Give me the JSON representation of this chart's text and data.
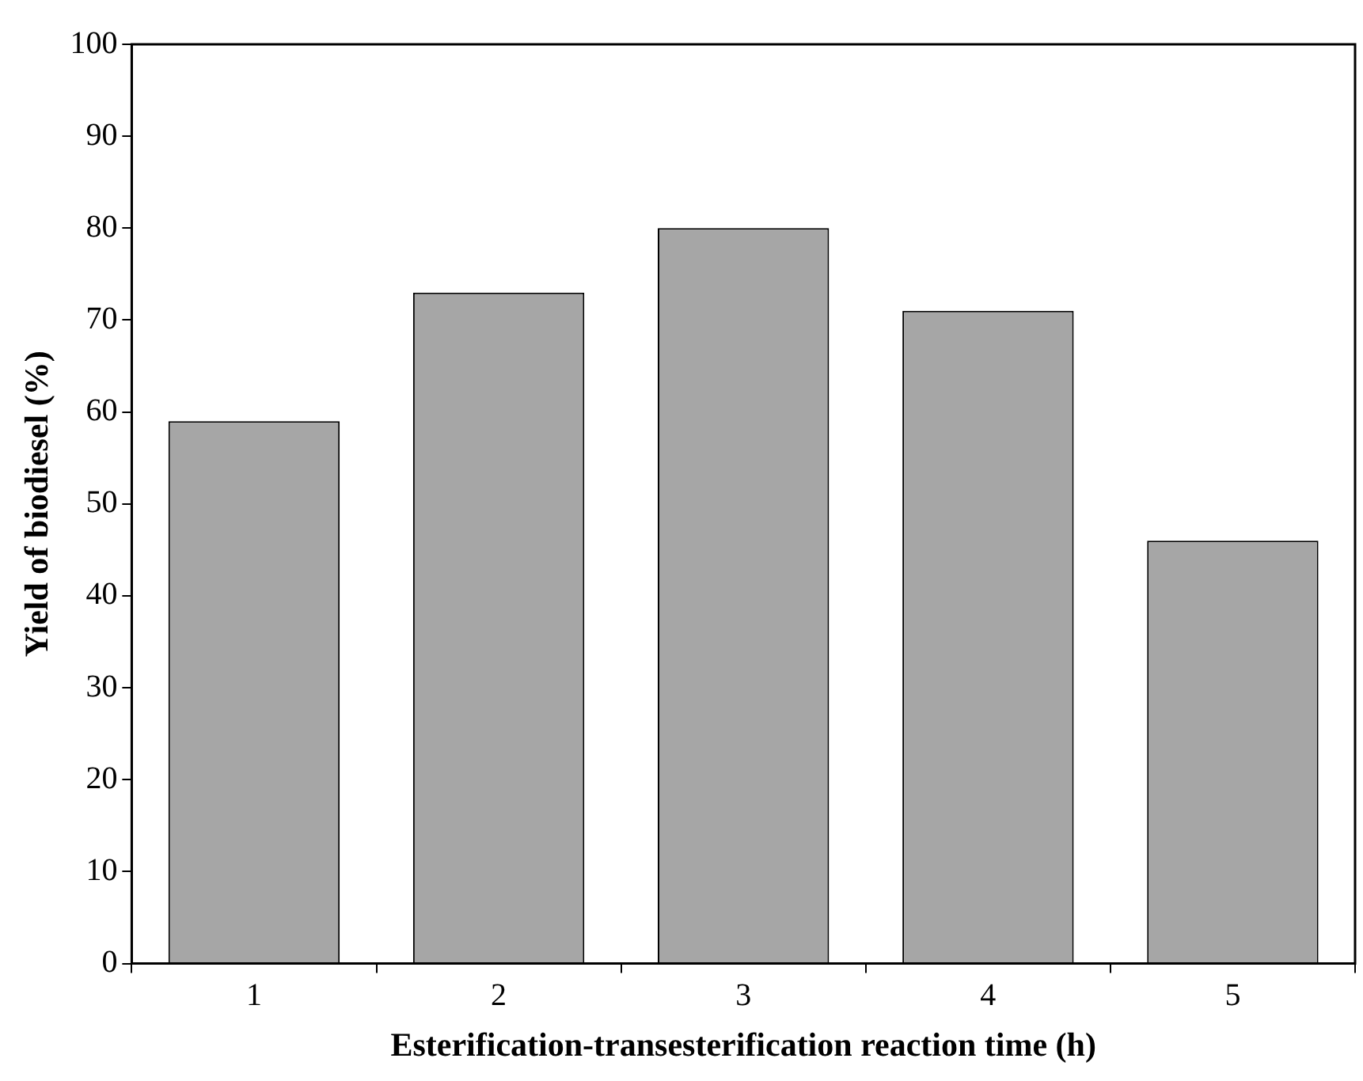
{
  "chart_data": {
    "type": "bar",
    "xlabel": "Esterification-transesterification reaction time (h)",
    "ylabel": "Yield of biodiesel (%)",
    "categories": [
      "1",
      "2",
      "3",
      "4",
      "5"
    ],
    "values": [
      59,
      73,
      80,
      71,
      46
    ],
    "color": "#a6a6a6",
    "ylim": [
      0,
      100
    ],
    "yticks": [
      0,
      10,
      20,
      30,
      40,
      50,
      60,
      70,
      80,
      90,
      100
    ],
    "grid": false,
    "legend": false
  }
}
